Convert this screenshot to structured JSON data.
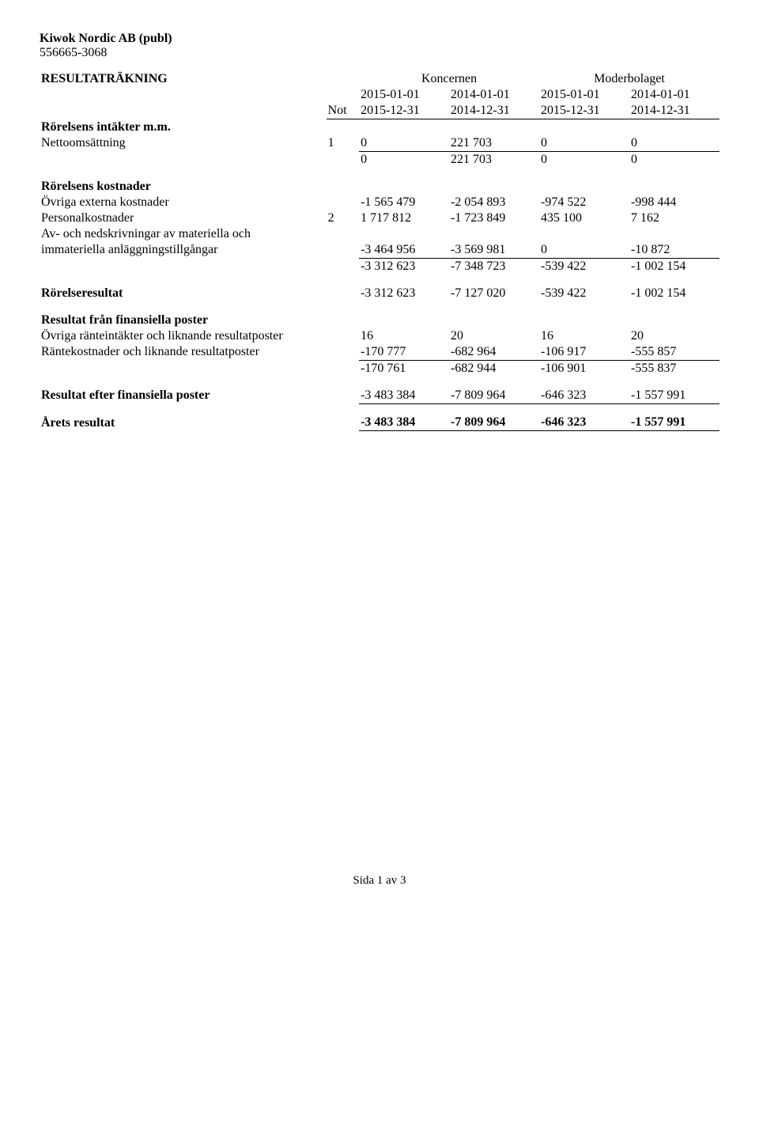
{
  "header": {
    "company": "Kiwok Nordic AB (publ)",
    "orgnr": "556665-3068"
  },
  "title": "RESULTATRÄKNING",
  "groupHeaders": {
    "koncernen": "Koncernen",
    "moderbolaget": "Moderbolaget"
  },
  "periodHeaders": {
    "not": "Not",
    "p1": "2015-01-01",
    "p2": "2014-01-01",
    "p3": "2015-01-01",
    "p4": "2014-01-01",
    "e1": "2015-12-31",
    "e2": "2014-12-31",
    "e3": "2015-12-31",
    "e4": "2014-12-31"
  },
  "sections": {
    "intakter": {
      "heading": "Rörelsens intäkter m.m.",
      "rows": {
        "netto": {
          "label": "Nettoomsättning",
          "not": "1",
          "v": [
            "0",
            "221 703",
            "0",
            "0"
          ]
        }
      },
      "sum": [
        "0",
        "221 703",
        "0",
        "0"
      ]
    },
    "kostnader": {
      "heading": "Rörelsens kostnader",
      "rows": {
        "externa": {
          "label": "Övriga externa kostnader",
          "not": "",
          "v": [
            "-1 565 479",
            "-2 054 893",
            "-974 522",
            "-998 444"
          ]
        },
        "personal": {
          "label": "Personalkostnader",
          "not": "2",
          "v": [
            "1 717 812",
            "-1 723 849",
            "435 100",
            "7 162"
          ]
        },
        "avskr1": {
          "label": "Av- och nedskrivningar av materiella och",
          "not": "",
          "v": [
            "",
            "",
            "",
            ""
          ]
        },
        "avskr2": {
          "label": "immateriella anläggningstillgångar",
          "not": "",
          "v": [
            "-3 464 956",
            "-3 569 981",
            "0",
            "-10 872"
          ]
        }
      },
      "sum": [
        "-3 312 623",
        "-7 348 723",
        "-539 422",
        "-1 002 154"
      ]
    },
    "rorelseresultat": {
      "label": "Rörelseresultat",
      "v": [
        "-3 312 623",
        "-7 127 020",
        "-539 422",
        "-1 002 154"
      ]
    },
    "finans": {
      "heading": "Resultat från finansiella poster",
      "rows": {
        "ranteint": {
          "label": "Övriga ränteintäkter och liknande resultatposter",
          "not": "",
          "v": [
            "16",
            "20",
            "16",
            "20"
          ]
        },
        "rantekost": {
          "label": "Räntekostnader och liknande resultatposter",
          "not": "",
          "v": [
            "-170 777",
            "-682 964",
            "-106 917",
            "-555 857"
          ]
        }
      },
      "sum": [
        "-170 761",
        "-682 944",
        "-106 901",
        "-555 837"
      ]
    },
    "efterfinans": {
      "label": "Resultat efter finansiella poster",
      "v": [
        "-3 483 384",
        "-7 809 964",
        "-646 323",
        "-1 557 991"
      ]
    },
    "aret": {
      "label": "Årets resultat",
      "v": [
        "-3 483 384",
        "-7 809 964",
        "-646 323",
        "-1 557 991"
      ]
    }
  },
  "footer": "Sida 1 av 3"
}
